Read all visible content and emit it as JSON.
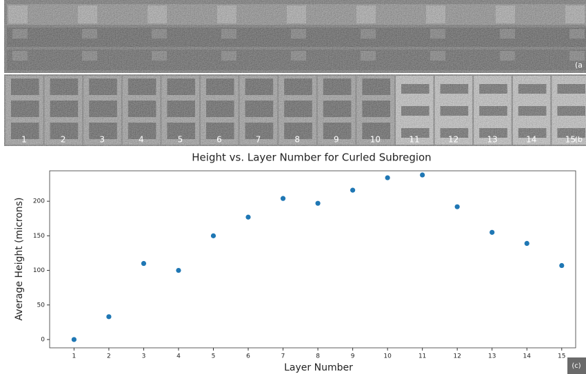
{
  "figure": {
    "panel_a_label": "(a",
    "panel_b_label": "(b",
    "panel_c_label": "(c)",
    "panel_b_labels": [
      "1",
      "2",
      "3",
      "4",
      "5",
      "6",
      "7",
      "8",
      "9",
      "10",
      "11",
      "12",
      "13",
      "14",
      "15"
    ]
  },
  "chart_data": {
    "type": "scatter",
    "title": "Height vs. Layer Number for Curled Subregion",
    "x_label": "Layer Number",
    "y_label": "Average Height (microns)",
    "x": [
      1,
      2,
      3,
      4,
      5,
      6,
      7,
      8,
      9,
      10,
      11,
      12,
      13,
      14,
      15
    ],
    "series": [
      {
        "color": "#1f77b4",
        "values": [
          0,
          33,
          110,
          100,
          150,
          177,
          204,
          197,
          216,
          234,
          238,
          192,
          155,
          139,
          107
        ]
      }
    ],
    "xlim": [
      0.3,
      15.4
    ],
    "ylim": [
      -12,
      244
    ],
    "xticks": [
      1,
      2,
      3,
      4,
      5,
      6,
      7,
      8,
      9,
      10,
      11,
      12,
      13,
      14,
      15
    ],
    "yticks": [
      0,
      50,
      100,
      150,
      200
    ]
  }
}
